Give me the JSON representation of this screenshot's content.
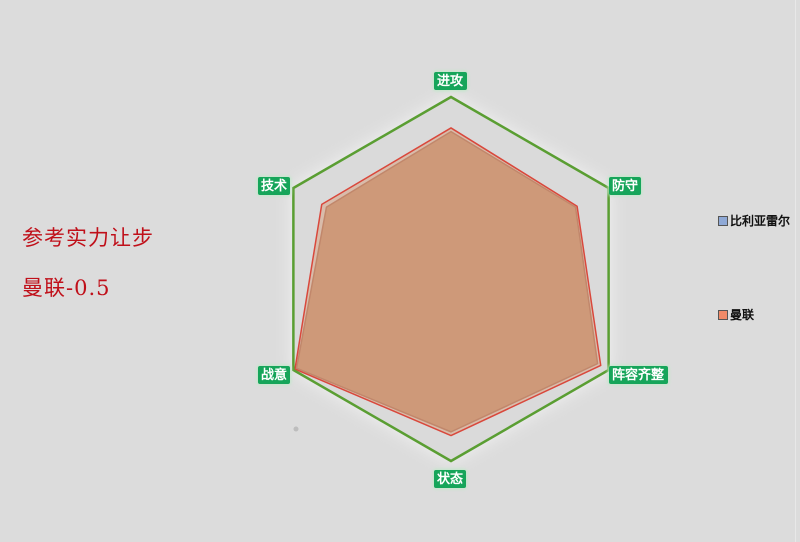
{
  "side_text": {
    "line1": "参考实力让步",
    "line2": "曼联-0.5"
  },
  "chart_data": {
    "type": "radar",
    "indicators": [
      "进攻",
      "防守",
      "阵容齐整",
      "状态",
      "战意",
      "技术"
    ],
    "max": 100,
    "series": [
      {
        "name": "比利亚雷尔",
        "values": [
          81,
          79,
          93,
          84,
          98,
          79
        ],
        "color": "#8fa9d6"
      },
      {
        "name": "曼联",
        "values": [
          83,
          80,
          95,
          86,
          99,
          82
        ],
        "color": "#f08a68"
      }
    ],
    "legend_position": "right",
    "axis_color": "#5a9e32",
    "label_bg": "#16a55a"
  }
}
